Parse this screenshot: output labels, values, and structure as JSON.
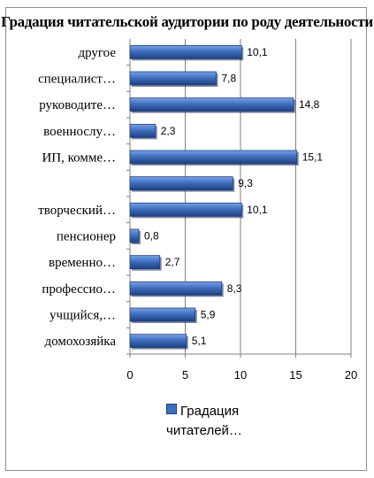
{
  "chart_data": {
    "type": "bar",
    "orientation": "horizontal",
    "title": "Градация читательской аудитории по роду деятельности",
    "categories": [
      "домохозяйка",
      "учщийся,…",
      "профессио…",
      "временно…",
      "пенсионер",
      "творческий…",
      "",
      "ИП, комме…",
      "военнослу…",
      "руководите…",
      "специалист…",
      "другое"
    ],
    "series": [
      {
        "name": "Градация читателей…",
        "values": [
          5.1,
          5.9,
          8.3,
          2.7,
          0.8,
          10.1,
          9.3,
          15.1,
          2.3,
          14.8,
          7.8,
          10.1
        ]
      }
    ],
    "value_labels": [
      "5,1",
      "5,9",
      "8,3",
      "2,7",
      "0,8",
      "10,1",
      "9,3",
      "15,1",
      "2,3",
      "14,8",
      "7,8",
      "10,1"
    ],
    "xlim": [
      0,
      20
    ],
    "xticks": [
      "0",
      "5",
      "10",
      "15",
      "20"
    ],
    "grid": "vertical",
    "legend": "bottom",
    "bar_color": "#3f6fbf"
  }
}
